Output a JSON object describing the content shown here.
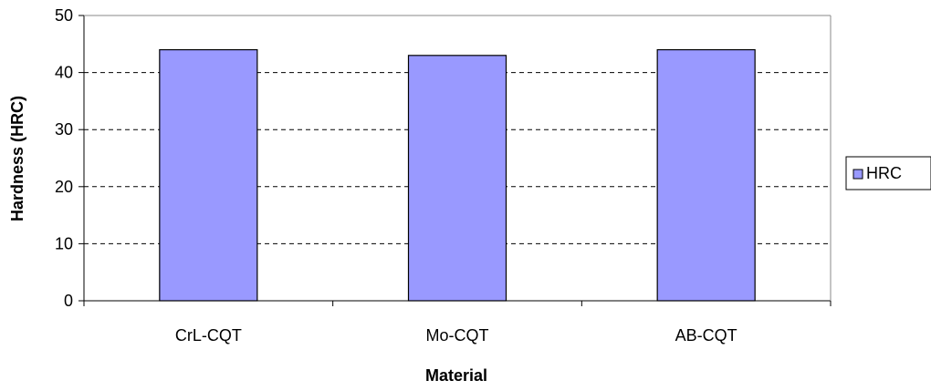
{
  "chart_data": {
    "type": "bar",
    "categories": [
      "CrL-CQT",
      "Mo-CQT",
      "AB-CQT"
    ],
    "series": [
      {
        "name": "HRC",
        "values": [
          44,
          43,
          44
        ]
      }
    ],
    "title": "",
    "xlabel": "Material",
    "ylabel": "Hardness (HRC)",
    "ylim": [
      0,
      50
    ],
    "yticks": [
      0,
      10,
      20,
      30,
      40,
      50
    ],
    "grid": "horizontal-dashed",
    "legend": "right",
    "colors": {
      "bar": "#9999FF",
      "bar_stroke": "#000000",
      "grid": "#000000"
    }
  }
}
